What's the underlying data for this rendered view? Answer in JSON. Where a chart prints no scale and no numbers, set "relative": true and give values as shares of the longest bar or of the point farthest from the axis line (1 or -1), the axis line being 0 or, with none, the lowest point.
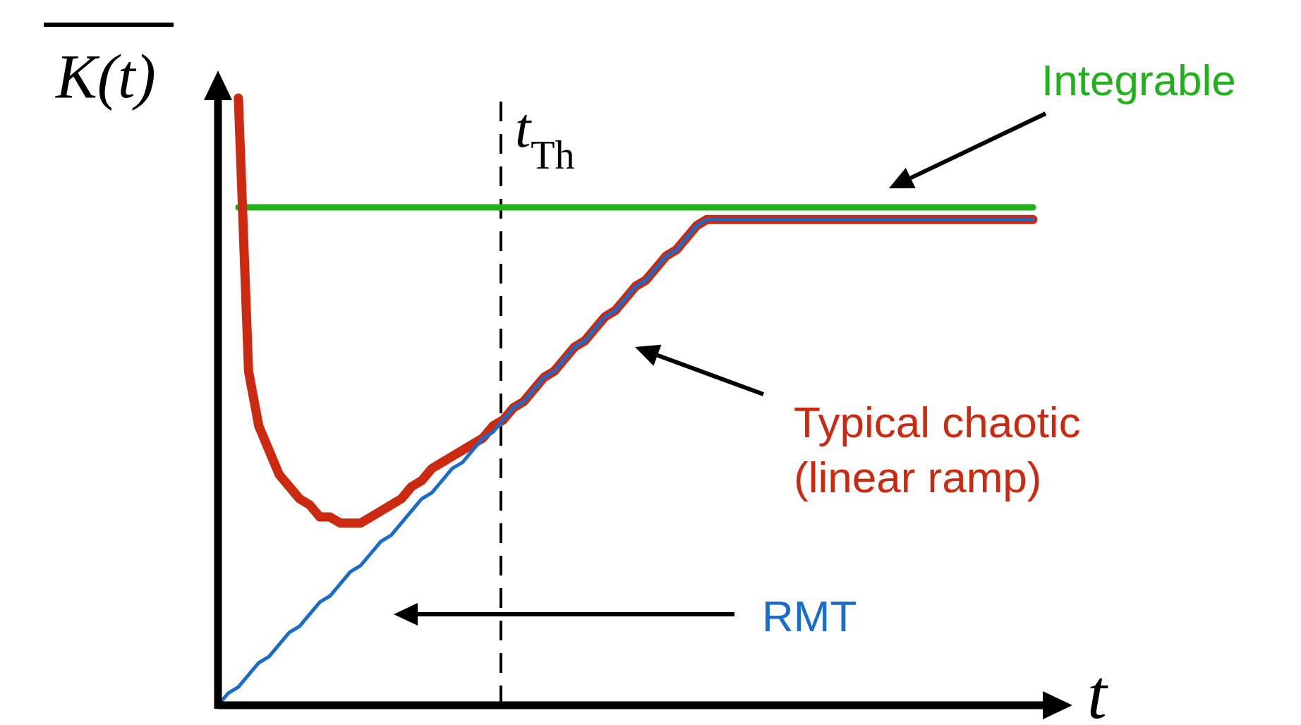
{
  "chart_data": {
    "type": "line",
    "relative": true,
    "ylabel": "K(t)",
    "xlabel": "t",
    "annotations": [
      "t$_{Th}$"
    ],
    "categories": [
      null,
      null,
      null,
      null,
      null,
      null,
      null,
      null,
      null,
      null,
      null,
      null,
      null,
      null,
      null,
      null,
      null,
      null,
      null,
      null,
      null,
      null,
      null,
      null,
      null,
      null,
      null,
      null,
      null,
      null,
      null,
      null,
      null,
      null,
      null,
      null,
      null,
      null,
      null,
      null,
      null,
      null,
      null,
      null,
      null,
      null,
      null,
      null,
      null,
      null,
      null,
      null,
      null,
      null,
      null,
      null,
      null,
      null,
      null,
      null,
      null,
      null,
      null,
      null,
      null,
      null,
      null,
      null,
      null,
      null,
      null,
      null,
      null,
      null,
      null,
      null,
      null,
      null,
      null,
      null,
      null
    ],
    "series": [
      {
        "name": "Integrable",
        "color": "#22b11a",
        "values": [
          null,
          null,
          0.82,
          0.82,
          0.82,
          0.82,
          0.82,
          0.82,
          0.82,
          0.82,
          0.82,
          0.82,
          0.82,
          0.82,
          0.82,
          0.82,
          0.82,
          0.82,
          0.82,
          0.82,
          0.82,
          0.82,
          0.82,
          0.82,
          0.82,
          0.82,
          0.82,
          0.82,
          0.82,
          0.82,
          0.82,
          0.82,
          0.82,
          0.82,
          0.82,
          0.82,
          0.82,
          0.82,
          0.82,
          0.82,
          0.82,
          0.82,
          0.82,
          0.82,
          0.82,
          0.82,
          0.82,
          0.82,
          0.82,
          0.82,
          0.82,
          0.82,
          0.82,
          0.82,
          0.82,
          0.82,
          0.82,
          0.82,
          0.82,
          0.82,
          0.82,
          0.82,
          0.82,
          0.82,
          0.82,
          0.82,
          0.82,
          0.82,
          0.82,
          0.82,
          0.82,
          0.82,
          0.82,
          0.82,
          0.82,
          0.82,
          0.82,
          0.82,
          0.82,
          0.82,
          0.82
        ]
      },
      {
        "name": "RMT",
        "color": "#1a6ccc",
        "values": [
          0,
          0.02,
          0.03,
          0.05,
          0.07,
          0.08,
          0.1,
          0.12,
          0.13,
          0.15,
          0.17,
          0.18,
          0.2,
          0.22,
          0.23,
          0.25,
          0.27,
          0.28,
          0.3,
          0.32,
          0.34,
          0.35,
          0.37,
          0.39,
          0.4,
          0.42,
          0.44,
          0.45,
          0.47,
          0.49,
          0.5,
          0.52,
          0.54,
          0.55,
          0.57,
          0.59,
          0.6,
          0.62,
          0.64,
          0.65,
          0.67,
          0.69,
          0.7,
          0.72,
          0.74,
          0.75,
          0.77,
          0.79,
          0.8,
          0.8,
          0.8,
          0.8,
          0.8,
          0.8,
          0.8,
          0.8,
          0.8,
          0.8,
          0.8,
          0.8,
          0.8,
          0.8,
          0.8,
          0.8,
          0.8,
          0.8,
          0.8,
          0.8,
          0.8,
          0.8,
          0.8,
          0.8,
          0.8,
          0.8,
          0.8,
          0.8,
          0.8,
          0.8,
          0.8,
          0.8,
          0.8
        ]
      },
      {
        "name": "Typical chaotic (linear ramp)",
        "color": "#cc2a10",
        "values": [
          null,
          null,
          1.0,
          0.55,
          0.46,
          0.42,
          0.38,
          0.36,
          0.34,
          0.33,
          0.31,
          0.31,
          0.3,
          0.3,
          0.3,
          0.31,
          0.32,
          0.33,
          0.34,
          0.36,
          0.37,
          0.39,
          0.4,
          0.41,
          0.42,
          0.43,
          0.44,
          0.46,
          0.47,
          0.49,
          0.5,
          0.52,
          0.54,
          0.55,
          0.57,
          0.59,
          0.6,
          0.62,
          0.64,
          0.65,
          0.67,
          0.69,
          0.7,
          0.72,
          0.74,
          0.75,
          0.77,
          0.79,
          0.8,
          0.8,
          0.8,
          0.8,
          0.8,
          0.8,
          0.8,
          0.8,
          0.8,
          0.8,
          0.8,
          0.8,
          0.8,
          0.8,
          0.8,
          0.8,
          0.8,
          0.8,
          0.8,
          0.8,
          0.8,
          0.8,
          0.8,
          0.8,
          0.8,
          0.8,
          0.8,
          0.8,
          0.8,
          0.8,
          0.8,
          0.8,
          0.8
        ]
      }
    ]
  }
}
